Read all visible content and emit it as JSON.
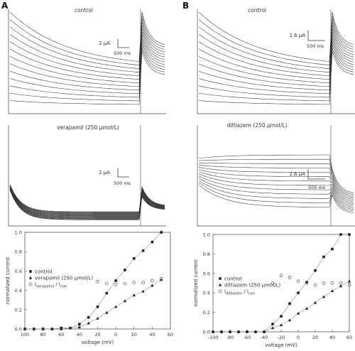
{
  "panels": [
    {
      "letter": "A",
      "top": {
        "title": "control",
        "scale_y": "2 μA",
        "scale_x": "500 ms"
      },
      "bottom": {
        "title": "verapamil (250 μmol/L)",
        "scale_y": "2 μA",
        "scale_x": "500 ms"
      }
    },
    {
      "letter": "B",
      "top": {
        "title": "control",
        "scale_y": "2.6 μA",
        "scale_x": "500 ms"
      },
      "bottom": {
        "title": "diltiazem (250 μmol/L)",
        "scale_y": "2.6 μA",
        "scale_x": "500 ms"
      }
    }
  ],
  "chart_data": [
    {
      "type": "scatter",
      "xlabel": "voltage (mV)",
      "ylabel": "normalized current",
      "xlim": [
        -100,
        60
      ],
      "ylim": [
        0,
        1.0
      ],
      "x_ticks": [
        "100",
        "80",
        "60",
        "40",
        "20",
        "0",
        "20",
        "40",
        "60"
      ],
      "y_ticks": [
        "0.0",
        "0.2",
        "0.4",
        "0.6",
        "0.8",
        "1.0"
      ],
      "legend": [
        "control",
        "verapamil (250 μmol/L)",
        "I verapamil / I con"
      ],
      "legend_sub": "verapamil",
      "legend_sub2": "con",
      "x": [
        -100,
        -90,
        -80,
        -70,
        -60,
        -50,
        -40,
        -30,
        -20,
        -10,
        0,
        10,
        20,
        30,
        40,
        50
      ],
      "series": [
        {
          "name": "control",
          "values": [
            0.0,
            0.0,
            0.0,
            0.0,
            0.01,
            0.01,
            0.05,
            0.12,
            0.23,
            0.37,
            0.5,
            0.61,
            0.73,
            0.81,
            0.9,
            1.0
          ]
        },
        {
          "name": "verapamil (250 μmol/L)",
          "values": [
            0.0,
            0.0,
            0.0,
            0.0,
            0.0,
            0.01,
            0.02,
            0.06,
            0.11,
            0.17,
            0.23,
            0.29,
            0.35,
            0.39,
            0.45,
            0.51
          ]
        },
        {
          "name": "I verapamil / I con",
          "values": [
            null,
            null,
            null,
            null,
            null,
            null,
            null,
            null,
            0.49,
            0.47,
            0.46,
            0.47,
            0.48,
            0.48,
            0.5,
            0.52
          ]
        }
      ]
    },
    {
      "type": "scatter",
      "xlabel": "voltage (mV)",
      "ylabel": "normalized current",
      "xlim": [
        -100,
        60
      ],
      "ylim": [
        0,
        1.0
      ],
      "x_ticks": [
        "-100",
        "-80",
        "-60",
        "-40",
        "-20",
        "0",
        "20",
        "40",
        "60"
      ],
      "y_ticks": [
        "0.0",
        "0.2",
        "0.4",
        "0.6",
        "0.8",
        "1.0"
      ],
      "legend": [
        "control",
        "diltiazem (250 μmol/L)",
        "I diltiazem / I con"
      ],
      "legend_sub": "diltiazem",
      "legend_sub2": "con",
      "x": [
        -100,
        -90,
        -80,
        -70,
        -60,
        -50,
        -40,
        -30,
        -20,
        -10,
        0,
        10,
        20,
        30,
        40,
        50,
        60
      ],
      "series": [
        {
          "name": "control",
          "values": [
            0.0,
            0.0,
            0.0,
            0.0,
            0.0,
            0.0,
            0.0,
            0.08,
            0.16,
            0.29,
            0.4,
            0.51,
            0.63,
            0.77,
            0.85,
            1.0,
            1.0
          ]
        },
        {
          "name": "diltiazem (250 μmol/L)",
          "values": [
            0.0,
            0.0,
            0.0,
            0.0,
            0.0,
            0.0,
            0.0,
            0.04,
            0.07,
            0.12,
            0.19,
            0.24,
            0.3,
            0.36,
            0.42,
            0.47,
            0.52
          ]
        },
        {
          "name": "I diltiazem / I con",
          "values": [
            null,
            null,
            null,
            null,
            null,
            null,
            null,
            0.5,
            0.58,
            0.56,
            0.52,
            0.5,
            0.48,
            0.5,
            0.5,
            0.5,
            0.48
          ]
        }
      ]
    }
  ]
}
